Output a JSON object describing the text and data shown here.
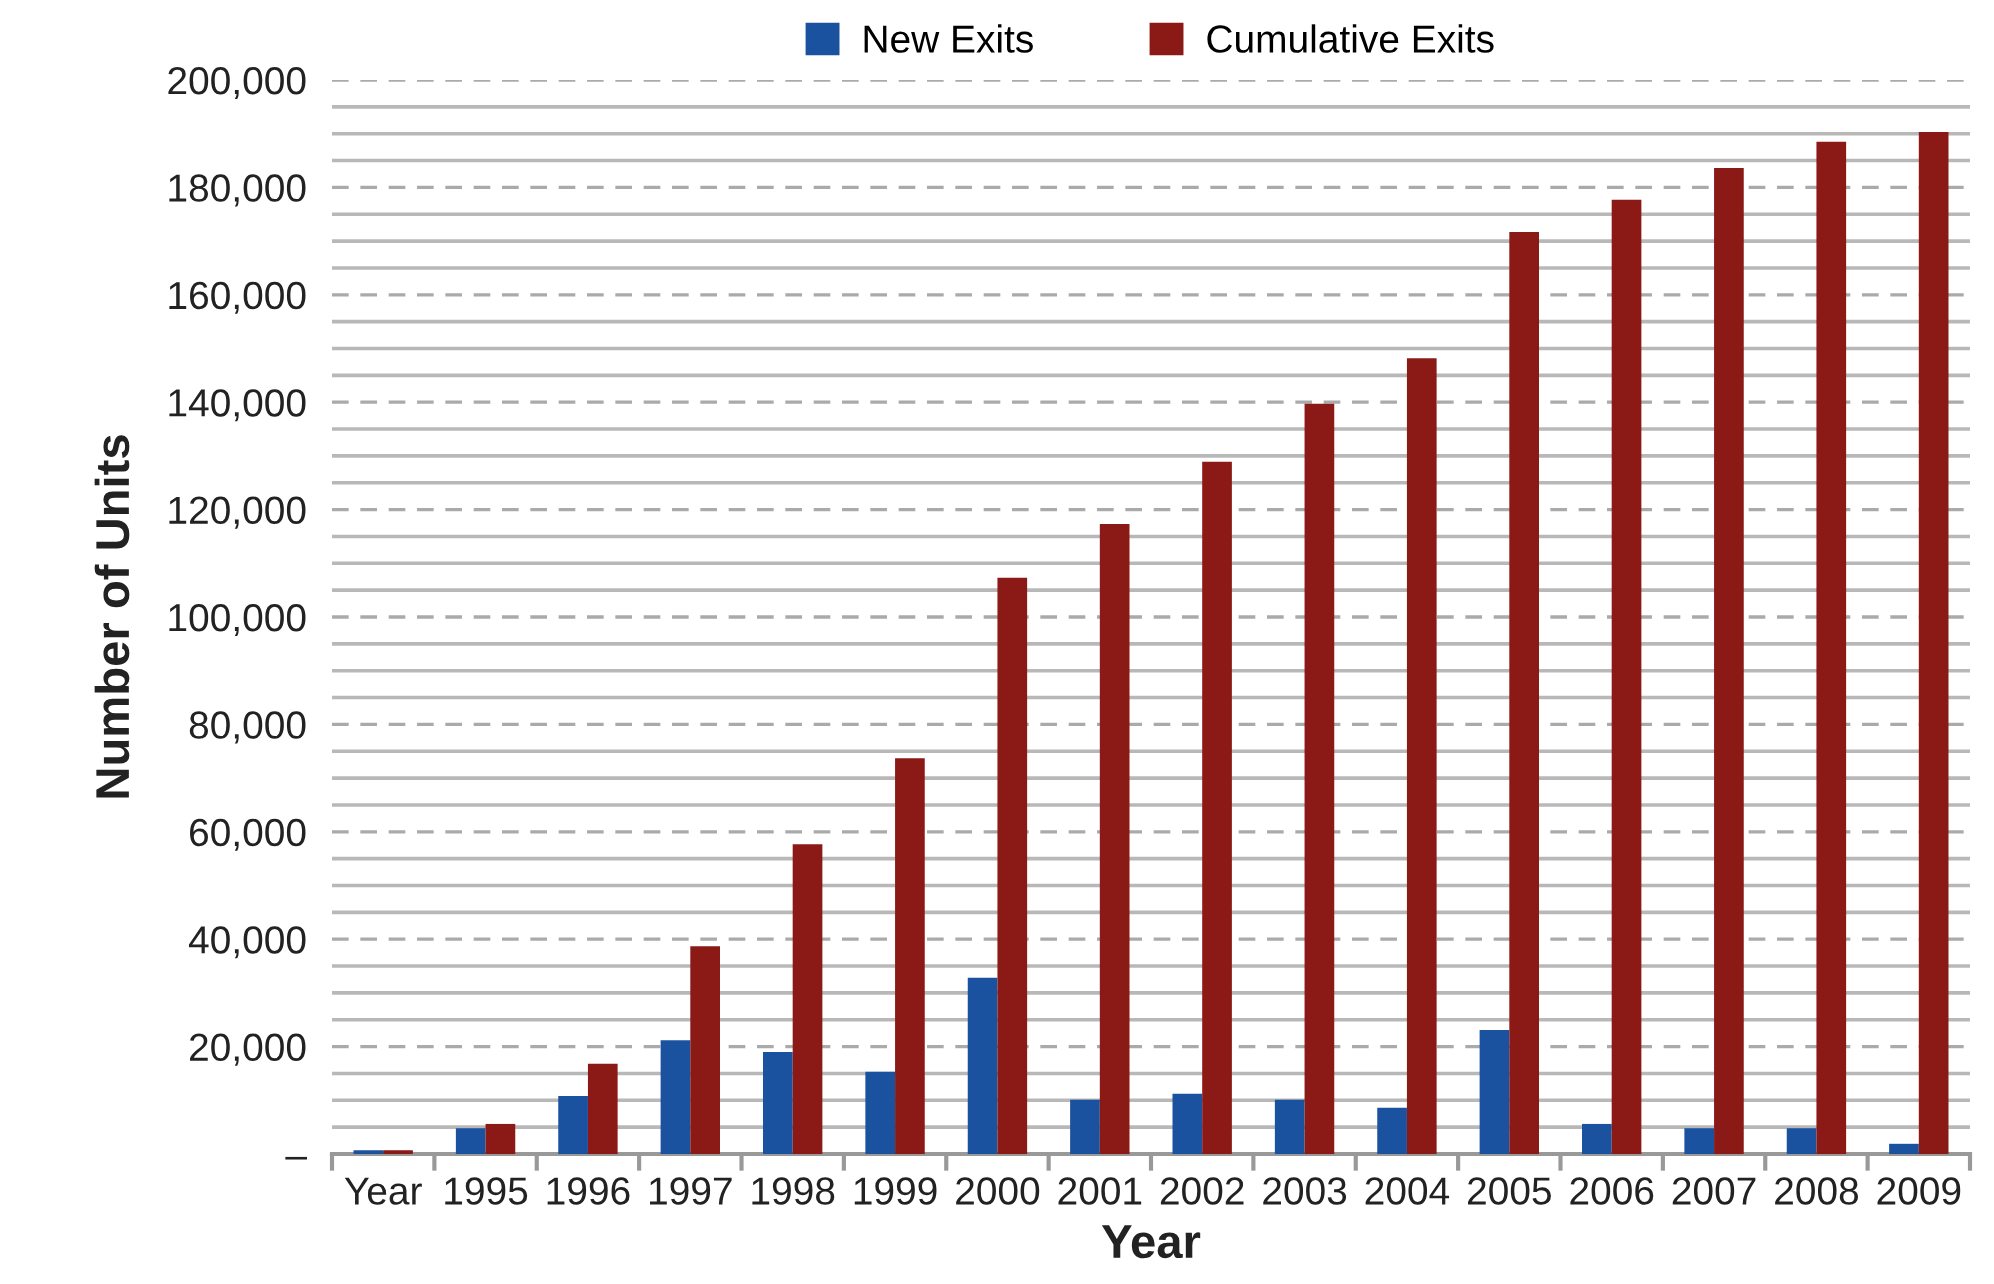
{
  "chart_data": {
    "type": "bar",
    "xlabel": "Year",
    "ylabel": "Number of Units",
    "categories": [
      "Year",
      "1995",
      "1996",
      "1997",
      "1998",
      "1999",
      "2000",
      "2001",
      "2002",
      "2003",
      "2004",
      "2005",
      "2006",
      "2007",
      "2008",
      "2009"
    ],
    "series": [
      {
        "name": "New Exits",
        "color": "#1a52a0",
        "values": [
          700,
          4800,
          10800,
          21200,
          19000,
          15300,
          32800,
          10100,
          11200,
          10100,
          8600,
          23100,
          5600,
          4800,
          4800,
          1900
        ]
      },
      {
        "name": "Cumulative Exits",
        "color": "#8b1a16",
        "values": [
          700,
          5600,
          16800,
          38700,
          57700,
          73700,
          107300,
          117300,
          128900,
          139700,
          148200,
          171700,
          177700,
          183600,
          188500,
          190300
        ]
      }
    ],
    "ylim": [
      0,
      200000
    ],
    "yticks": [
      {
        "value": 0,
        "label": "–"
      },
      {
        "value": 5000,
        "label": null
      },
      {
        "value": 10000,
        "label": null
      },
      {
        "value": 15000,
        "label": null
      },
      {
        "value": 20000,
        "label": "20,000"
      },
      {
        "value": 25000,
        "label": null
      },
      {
        "value": 30000,
        "label": null
      },
      {
        "value": 35000,
        "label": null
      },
      {
        "value": 40000,
        "label": "40,000"
      },
      {
        "value": 45000,
        "label": null
      },
      {
        "value": 50000,
        "label": null
      },
      {
        "value": 55000,
        "label": null
      },
      {
        "value": 60000,
        "label": "60,000"
      },
      {
        "value": 65000,
        "label": null
      },
      {
        "value": 70000,
        "label": null
      },
      {
        "value": 75000,
        "label": null
      },
      {
        "value": 80000,
        "label": "80,000"
      },
      {
        "value": 85000,
        "label": null
      },
      {
        "value": 90000,
        "label": null
      },
      {
        "value": 95000,
        "label": null
      },
      {
        "value": 100000,
        "label": "100,000"
      },
      {
        "value": 105000,
        "label": null
      },
      {
        "value": 110000,
        "label": null
      },
      {
        "value": 115000,
        "label": null
      },
      {
        "value": 120000,
        "label": "120,000"
      },
      {
        "value": 125000,
        "label": null
      },
      {
        "value": 130000,
        "label": null
      },
      {
        "value": 135000,
        "label": null
      },
      {
        "value": 140000,
        "label": "140,000"
      },
      {
        "value": 145000,
        "label": null
      },
      {
        "value": 150000,
        "label": null
      },
      {
        "value": 155000,
        "label": null
      },
      {
        "value": 160000,
        "label": "160,000"
      },
      {
        "value": 165000,
        "label": null
      },
      {
        "value": 170000,
        "label": null
      },
      {
        "value": 175000,
        "label": null
      },
      {
        "value": 180000,
        "label": "180,000"
      },
      {
        "value": 185000,
        "label": null
      },
      {
        "value": 190000,
        "label": null
      },
      {
        "value": 195000,
        "label": null
      },
      {
        "value": 200000,
        "label": "200,000"
      }
    ],
    "grid": "y",
    "legend": "top"
  }
}
